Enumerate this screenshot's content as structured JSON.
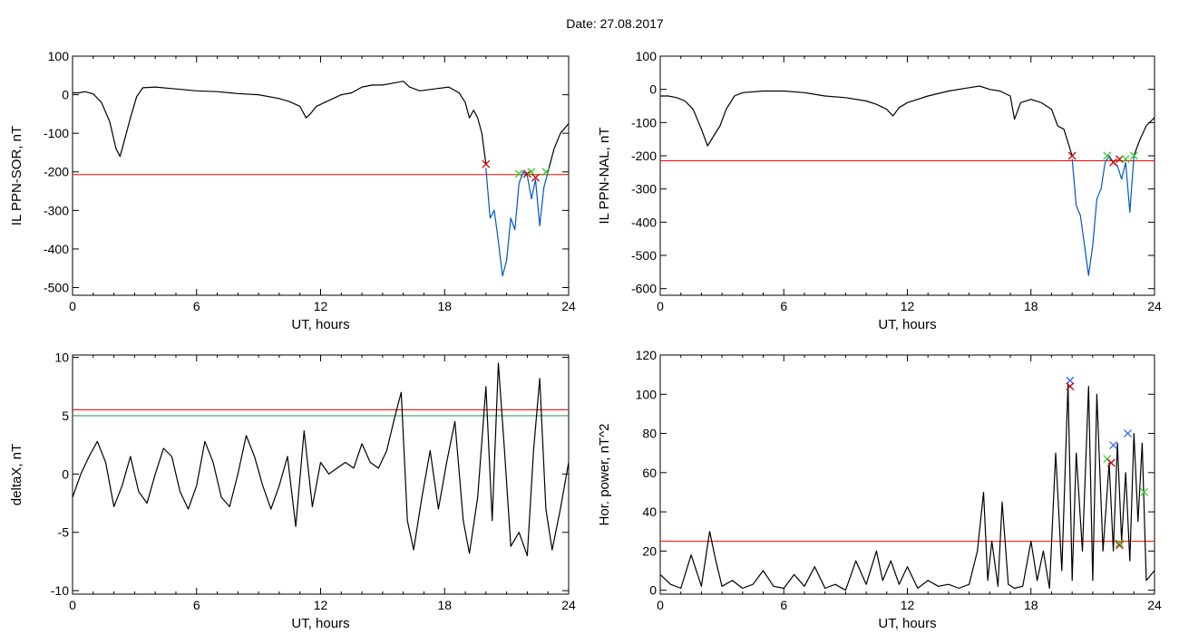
{
  "title": "Date:  27.08.2017",
  "colors": {
    "trace": "#000000",
    "threshold_red": "#ff0000",
    "threshold_teal": "#2e8b57",
    "highlight_blue": "#0055cc",
    "marker_green": "#33cc33",
    "marker_red": "#cc0000",
    "marker_blue": "#3366ff"
  },
  "chart_data": [
    {
      "type": "line",
      "xlabel": "UT, hours",
      "ylabel": "IL PPN-SOR, nT",
      "xlim": [
        0,
        24
      ],
      "ylim": [
        -520,
        100
      ],
      "xticks": [
        0,
        6,
        12,
        18,
        24
      ],
      "yticks": [
        100,
        0,
        -100,
        -200,
        -300,
        -400,
        -500
      ],
      "thresholds": [
        {
          "value": -207,
          "color": "#ff0000"
        }
      ],
      "series": [
        {
          "color": "#000000",
          "x": [
            0,
            0.3,
            0.6,
            1.0,
            1.4,
            1.8,
            2.1,
            2.3,
            2.5,
            2.8,
            3.1,
            3.4,
            4.0,
            5.0,
            6.0,
            7.0,
            8.0,
            9.0,
            10.0,
            10.5,
            11.0,
            11.3,
            11.5,
            11.8,
            12.2,
            13.0,
            13.5,
            14.0,
            14.5,
            15.0,
            15.5,
            16.0,
            16.3,
            16.8,
            17.5,
            18.2,
            18.7,
            19.0,
            19.2,
            19.4,
            19.6,
            19.8,
            20.0
          ],
          "y": [
            5,
            5,
            8,
            2,
            -20,
            -70,
            -140,
            -160,
            -120,
            -60,
            -5,
            18,
            20,
            15,
            10,
            8,
            3,
            0,
            -10,
            -18,
            -30,
            -60,
            -50,
            -30,
            -20,
            0,
            5,
            20,
            25,
            25,
            30,
            35,
            20,
            10,
            15,
            20,
            5,
            -20,
            -60,
            -40,
            -60,
            -100,
            -180
          ]
        },
        {
          "color": "#0055cc",
          "x": [
            20.0,
            20.2,
            20.4,
            20.6,
            20.8,
            21.0,
            21.2,
            21.4,
            21.6,
            21.8,
            22.0,
            22.2,
            22.4,
            22.6,
            22.8,
            23.0
          ],
          "y": [
            -190,
            -320,
            -300,
            -380,
            -470,
            -430,
            -320,
            -350,
            -230,
            -200,
            -210,
            -270,
            -220,
            -340,
            -240,
            -200
          ]
        },
        {
          "color": "#000000",
          "x": [
            23.0,
            23.3,
            23.6,
            24.0
          ],
          "y": [
            -200,
            -140,
            -100,
            -75
          ]
        }
      ],
      "markers": [
        {
          "x": 20.0,
          "y": -180,
          "color": "#cc0000"
        },
        {
          "x": 21.6,
          "y": -205,
          "color": "#33cc33"
        },
        {
          "x": 22.0,
          "y": -205,
          "color": "#cc0000"
        },
        {
          "x": 22.2,
          "y": -200,
          "color": "#33cc33"
        },
        {
          "x": 22.4,
          "y": -215,
          "color": "#cc0000"
        },
        {
          "x": 22.9,
          "y": -200,
          "color": "#33cc33"
        }
      ]
    },
    {
      "type": "line",
      "xlabel": "UT, hours",
      "ylabel": "IL PPN-NAL, nT",
      "xlim": [
        0,
        24
      ],
      "ylim": [
        -620,
        100
      ],
      "xticks": [
        0,
        6,
        12,
        18,
        24
      ],
      "yticks": [
        100,
        0,
        -100,
        -200,
        -300,
        -400,
        -500,
        -600
      ],
      "thresholds": [
        {
          "value": -215,
          "color": "#ff0000"
        }
      ],
      "series": [
        {
          "color": "#000000",
          "x": [
            0,
            0.4,
            0.8,
            1.2,
            1.6,
            2.0,
            2.3,
            2.6,
            2.9,
            3.2,
            3.6,
            4.0,
            5.0,
            6.0,
            7.0,
            8.0,
            9.0,
            10.0,
            10.5,
            11.0,
            11.3,
            11.6,
            12.0,
            13.0,
            14.0,
            15.0,
            15.5,
            16.0,
            16.5,
            17.0,
            17.2,
            17.5,
            18.0,
            18.5,
            19.0,
            19.3,
            19.6,
            20.0
          ],
          "y": [
            -20,
            -20,
            -25,
            -35,
            -60,
            -120,
            -170,
            -140,
            -110,
            -60,
            -20,
            -10,
            -5,
            -5,
            -10,
            -20,
            -25,
            -35,
            -45,
            -60,
            -80,
            -55,
            -40,
            -20,
            -5,
            5,
            10,
            0,
            -5,
            -20,
            -90,
            -40,
            -30,
            -40,
            -60,
            -110,
            -120,
            -200
          ]
        },
        {
          "color": "#0055cc",
          "x": [
            20.0,
            20.2,
            20.4,
            20.6,
            20.8,
            21.0,
            21.2,
            21.4,
            21.6,
            21.8,
            22.0,
            22.2,
            22.4,
            22.6,
            22.8,
            23.0
          ],
          "y": [
            -210,
            -350,
            -380,
            -470,
            -560,
            -470,
            -330,
            -300,
            -220,
            -200,
            -220,
            -230,
            -270,
            -220,
            -370,
            -200
          ]
        },
        {
          "color": "#000000",
          "x": [
            23.0,
            23.3,
            23.6,
            24.0
          ],
          "y": [
            -200,
            -150,
            -110,
            -85
          ]
        }
      ],
      "markers": [
        {
          "x": 20.0,
          "y": -200,
          "color": "#cc0000"
        },
        {
          "x": 21.7,
          "y": -200,
          "color": "#33cc33"
        },
        {
          "x": 22.0,
          "y": -220,
          "color": "#cc0000"
        },
        {
          "x": 22.3,
          "y": -210,
          "color": "#cc0000"
        },
        {
          "x": 22.6,
          "y": -210,
          "color": "#33cc33"
        },
        {
          "x": 23.0,
          "y": -200,
          "color": "#33cc33"
        }
      ]
    },
    {
      "type": "line",
      "xlabel": "UT, hours",
      "ylabel": "deltaX, nT",
      "xlim": [
        0,
        24
      ],
      "ylim": [
        -10.3,
        10.2
      ],
      "xticks": [
        0,
        6,
        12,
        18,
        24
      ],
      "yticks": [
        10,
        5,
        0,
        -5,
        -10
      ],
      "thresholds": [
        {
          "value": 5.5,
          "color": "#ff0000"
        },
        {
          "value": 5.0,
          "color": "#2e8b57"
        }
      ],
      "series": [
        {
          "color": "#000000",
          "x": [
            0,
            0.4,
            0.8,
            1.2,
            1.6,
            2.0,
            2.4,
            2.8,
            3.2,
            3.6,
            4.0,
            4.4,
            4.8,
            5.2,
            5.6,
            6.0,
            6.4,
            6.8,
            7.2,
            7.6,
            8.0,
            8.4,
            8.8,
            9.2,
            9.6,
            10.0,
            10.4,
            10.8,
            11.2,
            11.6,
            12.0,
            12.4,
            12.8,
            13.2,
            13.6,
            14.0,
            14.4,
            14.8,
            15.2,
            15.6,
            15.9,
            16.2,
            16.5,
            16.9,
            17.3,
            17.7,
            18.1,
            18.5,
            18.9,
            19.2,
            19.6,
            20.0,
            20.3,
            20.6,
            20.9,
            21.2,
            21.6,
            22.0,
            22.3,
            22.6,
            22.9,
            23.2,
            23.6,
            24.0
          ],
          "y": [
            -2,
            0,
            1.5,
            2.8,
            1,
            -2.8,
            -1,
            1.5,
            -1.5,
            -2.5,
            0,
            2.2,
            1.5,
            -1.5,
            -3,
            -1,
            2.8,
            1,
            -2,
            -2.8,
            0,
            3.3,
            1.5,
            -1,
            -3,
            -1,
            1.5,
            -4.5,
            3.7,
            -2.8,
            1,
            0,
            0.5,
            1,
            0.5,
            2.6,
            1,
            0.5,
            2,
            5,
            7,
            -4,
            -6.5,
            -2,
            2,
            -3,
            1,
            4.5,
            -4,
            -6.8,
            -2,
            7.5,
            -4,
            9.5,
            2,
            -6.2,
            -5,
            -7,
            2,
            8.2,
            -3,
            -6.5,
            -3,
            1
          ]
        }
      ]
    },
    {
      "type": "line",
      "xlabel": "UT, hours",
      "ylabel": "Hor. power, nT^2",
      "xlim": [
        0,
        24
      ],
      "ylim": [
        -2,
        120
      ],
      "xticks": [
        0,
        6,
        12,
        18,
        24
      ],
      "yticks": [
        120,
        100,
        80,
        60,
        40,
        20,
        0
      ],
      "thresholds": [
        {
          "value": 25,
          "color": "#ff0000"
        }
      ],
      "series": [
        {
          "color": "#000000",
          "x": [
            0,
            0.5,
            1.0,
            1.5,
            2.0,
            2.4,
            2.7,
            3.0,
            3.5,
            4.0,
            4.5,
            5.0,
            5.5,
            6.0,
            6.5,
            7.0,
            7.5,
            8.0,
            8.5,
            9.0,
            9.5,
            10.0,
            10.5,
            10.8,
            11.2,
            11.6,
            12.0,
            12.5,
            13.0,
            13.5,
            14.0,
            14.5,
            15.0,
            15.4,
            15.7,
            15.9,
            16.1,
            16.4,
            16.6,
            16.9,
            17.2,
            17.6,
            18.0,
            18.3,
            18.6,
            18.9,
            19.2,
            19.5,
            19.8,
            20.0,
            20.2,
            20.5,
            20.8,
            21.0,
            21.2,
            21.5,
            21.8,
            22.0,
            22.2,
            22.4,
            22.6,
            22.8,
            23.0,
            23.2,
            23.4,
            23.6,
            24.0
          ],
          "y": [
            8,
            3,
            1,
            18,
            2,
            30,
            15,
            2,
            5,
            1,
            3,
            10,
            2,
            1,
            8,
            2,
            12,
            1,
            3,
            0,
            15,
            3,
            20,
            5,
            15,
            3,
            12,
            1,
            5,
            2,
            3,
            1,
            3,
            20,
            50,
            5,
            25,
            2,
            45,
            3,
            1,
            2,
            25,
            5,
            20,
            1,
            70,
            10,
            105,
            5,
            70,
            20,
            104,
            5,
            100,
            20,
            65,
            20,
            75,
            25,
            60,
            15,
            80,
            35,
            75,
            5,
            10
          ]
        }
      ],
      "markers": [
        {
          "x": 19.9,
          "y": 107,
          "color": "#3366ff"
        },
        {
          "x": 19.9,
          "y": 104,
          "color": "#cc0000"
        },
        {
          "x": 21.7,
          "y": 67,
          "color": "#33cc33"
        },
        {
          "x": 21.9,
          "y": 65,
          "color": "#cc0000"
        },
        {
          "x": 22.0,
          "y": 74,
          "color": "#3366ff"
        },
        {
          "x": 22.3,
          "y": 23,
          "color": "#cc0000"
        },
        {
          "x": 22.3,
          "y": 24,
          "color": "#33cc33"
        },
        {
          "x": 22.7,
          "y": 80,
          "color": "#3366ff"
        },
        {
          "x": 23.5,
          "y": 50,
          "color": "#33cc33"
        }
      ]
    }
  ]
}
